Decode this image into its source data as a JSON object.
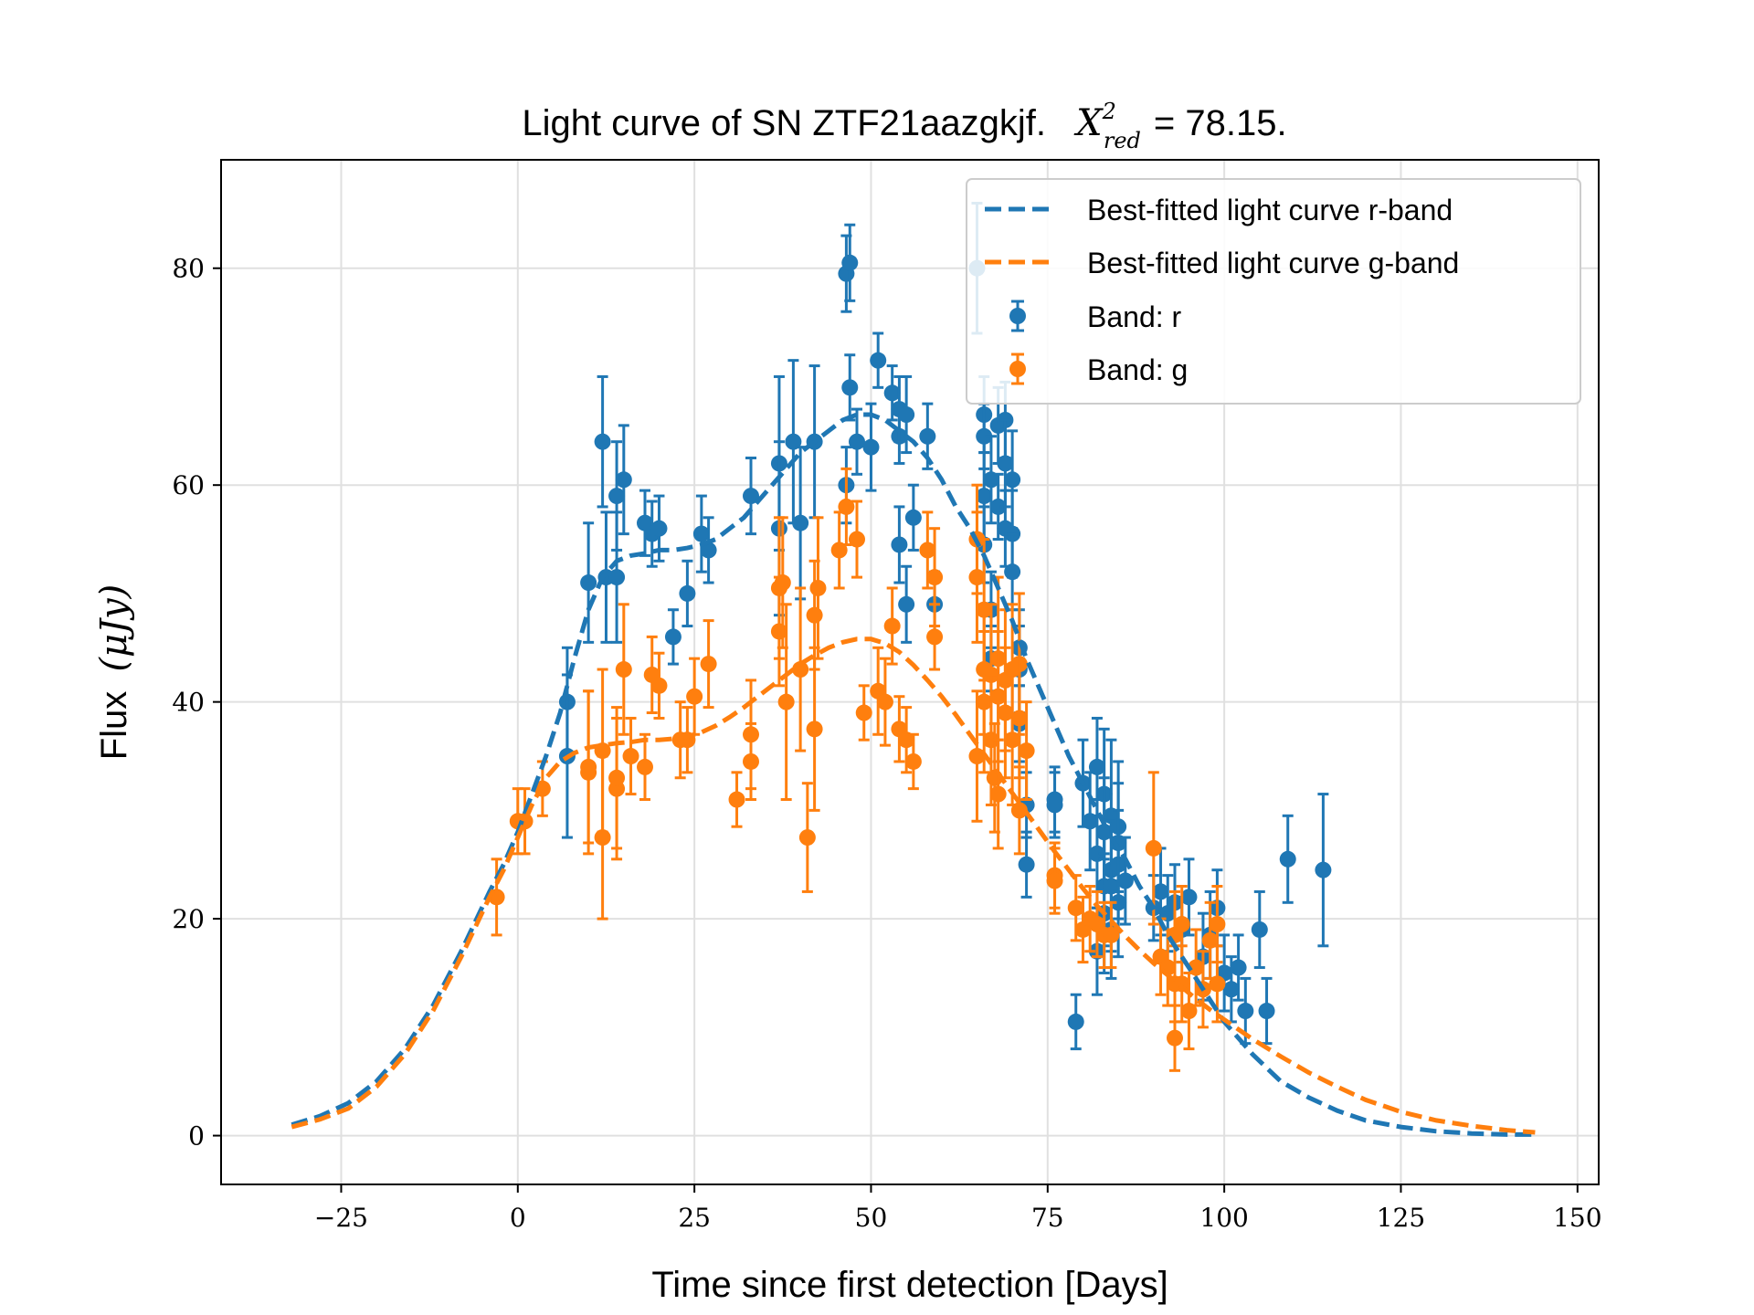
{
  "chart_data": {
    "type": "scatter",
    "title_prefix": "Light curve of SN ZTF21aazgkjf.",
    "title_stat_symbol": "X",
    "title_stat_superscript": "2",
    "title_stat_subscript": "red",
    "title_stat_value": "= 78.15.",
    "xlabel": "Time since first detection [Days]",
    "ylabel_text": "Flux",
    "ylabel_unit": "(μJy)",
    "xlim": [
      -42,
      153
    ],
    "ylim": [
      -4.5,
      90
    ],
    "xticks": [
      -25,
      0,
      25,
      50,
      75,
      100,
      125,
      150
    ],
    "xtick_labels": [
      "−25",
      "0",
      "25",
      "50",
      "75",
      "100",
      "125",
      "150"
    ],
    "yticks": [
      0,
      20,
      40,
      60,
      80
    ],
    "ytick_labels": [
      "0",
      "20",
      "40",
      "60",
      "80"
    ],
    "grid": true,
    "legend_position": "top-right",
    "colors": {
      "r": "#1f77b4",
      "g": "#ff7f0e"
    },
    "series": [
      {
        "name": "Best-fitted light curve r-band",
        "kind": "line",
        "band": "r",
        "x": [
          -32,
          -28,
          -24,
          -20,
          -16,
          -12,
          -8,
          -4,
          -2,
          0,
          2,
          4,
          6,
          8,
          10,
          12,
          14,
          16,
          18,
          20,
          22,
          24,
          26,
          28,
          30,
          32,
          34,
          36,
          38,
          40,
          42,
          44,
          46,
          48,
          50,
          52,
          54,
          56,
          58,
          60,
          62,
          64,
          66,
          68,
          70,
          72,
          74,
          76,
          78,
          80,
          82,
          84,
          86,
          88,
          90,
          92,
          94,
          96,
          98,
          100,
          104,
          108,
          112,
          116,
          120,
          125,
          130,
          135,
          140,
          144
        ],
        "y": [
          1.0,
          1.8,
          3.0,
          5.0,
          8.0,
          12.0,
          17.0,
          22.5,
          25.0,
          28.0,
          31.5,
          35.0,
          39.0,
          44.0,
          48.5,
          51.5,
          53.0,
          53.5,
          53.7,
          54.0,
          54.0,
          54.2,
          54.5,
          55.0,
          56.0,
          57.0,
          58.5,
          60.0,
          61.5,
          63.0,
          64.0,
          65.0,
          66.0,
          66.5,
          66.5,
          66.0,
          65.0,
          64.0,
          62.5,
          60.5,
          58.0,
          56.0,
          53.5,
          50.5,
          47.5,
          44.0,
          41.0,
          38.0,
          35.0,
          32.5,
          30.0,
          27.5,
          25.5,
          23.0,
          21.0,
          18.5,
          16.5,
          14.5,
          12.5,
          10.5,
          7.5,
          5.0,
          3.5,
          2.3,
          1.4,
          0.8,
          0.4,
          0.2,
          0.1,
          0.1
        ]
      },
      {
        "name": "Best-fitted light curve g-band",
        "kind": "line",
        "band": "g",
        "x": [
          -32,
          -28,
          -24,
          -20,
          -16,
          -12,
          -8,
          -4,
          -2,
          0,
          2,
          4,
          6,
          8,
          10,
          12,
          14,
          16,
          18,
          20,
          22,
          24,
          26,
          28,
          30,
          32,
          34,
          36,
          38,
          40,
          42,
          44,
          46,
          48,
          50,
          52,
          54,
          56,
          58,
          60,
          62,
          64,
          66,
          68,
          70,
          72,
          74,
          76,
          78,
          80,
          82,
          84,
          86,
          88,
          90,
          92,
          94,
          96,
          98,
          100,
          104,
          108,
          112,
          116,
          120,
          125,
          130,
          135,
          140,
          144
        ],
        "y": [
          0.8,
          1.5,
          2.5,
          4.5,
          7.5,
          11.5,
          16.5,
          22.0,
          24.5,
          27.5,
          30.5,
          33.0,
          34.5,
          35.3,
          35.8,
          36.0,
          36.2,
          36.3,
          36.5,
          36.5,
          36.6,
          36.8,
          37.2,
          37.8,
          38.6,
          39.5,
          40.5,
          41.5,
          42.5,
          43.5,
          44.3,
          45.0,
          45.5,
          45.8,
          45.8,
          45.4,
          44.6,
          43.4,
          42.0,
          40.5,
          38.8,
          37.0,
          35.2,
          33.4,
          31.6,
          29.8,
          28.0,
          26.2,
          24.5,
          22.8,
          21.2,
          19.8,
          18.4,
          17.1,
          15.9,
          14.8,
          13.7,
          12.6,
          11.6,
          10.7,
          8.9,
          7.3,
          5.8,
          4.5,
          3.3,
          2.2,
          1.4,
          0.9,
          0.5,
          0.3
        ]
      },
      {
        "name": "Band:  r",
        "kind": "errorbar",
        "band": "r",
        "x": [
          7,
          7,
          10,
          12,
          12.5,
          14,
          14,
          15,
          18,
          19,
          20,
          22,
          24,
          26,
          27,
          33,
          37,
          37,
          39,
          40,
          42,
          46.5,
          46.5,
          47,
          47,
          48,
          50,
          51,
          53,
          54,
          54,
          54,
          55,
          55,
          56,
          58,
          59,
          65,
          66,
          66,
          66,
          66,
          67,
          67,
          67,
          68,
          68,
          69,
          69,
          69,
          70,
          70,
          70,
          71,
          71,
          71,
          72,
          72,
          76,
          76,
          79,
          80,
          81,
          82,
          82,
          82,
          83,
          83,
          83,
          83,
          84,
          84,
          84,
          84,
          85,
          85,
          85,
          85,
          86,
          90,
          91,
          92,
          93,
          94,
          95,
          97,
          98,
          99,
          100,
          101,
          102,
          103,
          105,
          106,
          109,
          114
        ],
        "y": [
          40.0,
          35.0,
          51.0,
          64.0,
          51.5,
          51.5,
          59.0,
          60.5,
          56.5,
          55.5,
          56.0,
          46.0,
          50.0,
          55.5,
          54.0,
          59.0,
          62.0,
          56.0,
          64.0,
          56.5,
          64.0,
          79.5,
          60.0,
          80.5,
          69.0,
          64.0,
          63.5,
          71.5,
          68.5,
          64.5,
          67.0,
          54.5,
          49.0,
          66.5,
          57.0,
          64.5,
          49.0,
          80.0,
          66.5,
          64.5,
          59.0,
          54.5,
          60.5,
          48.5,
          44.0,
          65.5,
          58.0,
          66.0,
          62.0,
          56.0,
          60.5,
          55.5,
          52.0,
          45.0,
          43.0,
          38.0,
          30.5,
          25.0,
          31.0,
          30.5,
          10.5,
          32.5,
          29.0,
          34.0,
          26.0,
          17.0,
          20.5,
          31.5,
          23.0,
          28.0,
          24.5,
          19.0,
          29.5,
          23.0,
          28.5,
          25.0,
          27.0,
          21.5,
          23.5,
          21.0,
          22.5,
          20.5,
          21.5,
          19.0,
          22.0,
          16.5,
          18.5,
          21.0,
          15.0,
          13.5,
          15.5,
          11.5,
          19.0,
          11.5,
          25.5,
          24.5
        ],
        "err": [
          5.0,
          7.5,
          5.5,
          6.0,
          6.0,
          6.0,
          5.0,
          5.0,
          3.0,
          3.0,
          3.0,
          2.5,
          3.0,
          3.5,
          3.0,
          3.5,
          8.0,
          8.0,
          7.5,
          7.0,
          7.0,
          3.5,
          3.5,
          3.5,
          3.0,
          3.0,
          4.0,
          2.5,
          2.5,
          2.5,
          3.0,
          3.5,
          3.5,
          3.5,
          3.0,
          3.0,
          3.0,
          6.0,
          3.5,
          3.0,
          4.0,
          3.5,
          4.0,
          3.5,
          3.0,
          3.5,
          3.0,
          3.5,
          4.0,
          3.5,
          4.5,
          4.0,
          3.5,
          3.5,
          4.0,
          3.5,
          3.0,
          3.0,
          3.0,
          3.0,
          2.5,
          4.0,
          4.5,
          4.5,
          5.0,
          4.0,
          5.5,
          6.0,
          5.5,
          5.0,
          5.0,
          4.5,
          7.0,
          6.0,
          6.0,
          5.0,
          5.5,
          5.0,
          4.0,
          3.0,
          4.0,
          3.5,
          3.5,
          3.0,
          3.5,
          4.0,
          4.0,
          3.5,
          3.5,
          3.0,
          3.0,
          3.0,
          3.5,
          3.0,
          4.0,
          7.0
        ]
      },
      {
        "name": "Band:  g",
        "kind": "errorbar",
        "band": "g",
        "x": [
          -3,
          0,
          1,
          3.5,
          10,
          10,
          12,
          12,
          14,
          14,
          15,
          16,
          18,
          19,
          20,
          23,
          24,
          25,
          27,
          31,
          33,
          33,
          37,
          37,
          37.5,
          38,
          40,
          41,
          42,
          42,
          42.5,
          45.5,
          46.5,
          48,
          49,
          51,
          52,
          53,
          54,
          55,
          56,
          58,
          59,
          59,
          65,
          65,
          65,
          66,
          66,
          66,
          67,
          67,
          67.5,
          68,
          68,
          68,
          69,
          69,
          70,
          70,
          71,
          71,
          71,
          72,
          76,
          76,
          79,
          80,
          81,
          82,
          83,
          84,
          90,
          91,
          92,
          93,
          93,
          93,
          94,
          94,
          95,
          96,
          97,
          98,
          99,
          99
        ],
        "y": [
          22.0,
          29.0,
          29.0,
          32.0,
          34.0,
          33.5,
          27.5,
          35.5,
          32.0,
          33.0,
          43.0,
          35.0,
          34.0,
          42.5,
          41.5,
          36.5,
          36.5,
          40.5,
          43.5,
          31.0,
          34.5,
          37.0,
          46.5,
          50.5,
          51.0,
          40.0,
          43.0,
          27.5,
          37.5,
          48.0,
          50.5,
          54.0,
          58.0,
          55.0,
          39.0,
          41.0,
          40.0,
          47.0,
          37.5,
          36.5,
          34.5,
          54.0,
          46.0,
          51.5,
          55.0,
          51.5,
          35.0,
          48.5,
          43.0,
          40.0,
          42.5,
          36.5,
          33.0,
          44.0,
          40.5,
          31.5,
          42.0,
          39.0,
          43.0,
          36.5,
          43.5,
          38.5,
          30.0,
          35.5,
          24.0,
          23.5,
          21.0,
          19.0,
          20.0,
          19.5,
          18.5,
          18.5,
          26.5,
          16.5,
          15.5,
          18.5,
          14.0,
          9.0,
          19.5,
          14.0,
          11.5,
          15.5,
          13.5,
          18.0,
          19.5,
          14.0
        ],
        "err": [
          3.5,
          3.0,
          3.0,
          2.5,
          7.0,
          7.5,
          7.5,
          7.5,
          6.5,
          6.5,
          6.0,
          3.5,
          3.0,
          3.5,
          3.0,
          3.5,
          3.0,
          3.5,
          4.0,
          2.5,
          3.5,
          5.0,
          5.0,
          6.5,
          6.0,
          9.0,
          7.5,
          5.0,
          7.5,
          5.0,
          6.5,
          3.5,
          3.5,
          3.5,
          2.5,
          4.0,
          4.0,
          3.5,
          3.0,
          3.0,
          2.5,
          3.5,
          3.0,
          4.5,
          5.0,
          6.0,
          6.0,
          6.5,
          6.0,
          6.5,
          6.5,
          6.0,
          5.0,
          7.5,
          6.0,
          5.0,
          6.5,
          6.0,
          6.0,
          6.0,
          6.5,
          5.5,
          4.0,
          4.5,
          3.0,
          3.0,
          3.0,
          3.0,
          3.0,
          3.0,
          3.0,
          3.0,
          7.0,
          3.5,
          3.5,
          4.0,
          3.5,
          3.0,
          3.5,
          3.5,
          3.5,
          3.5,
          3.5,
          3.5,
          3.5,
          3.5
        ]
      }
    ]
  }
}
